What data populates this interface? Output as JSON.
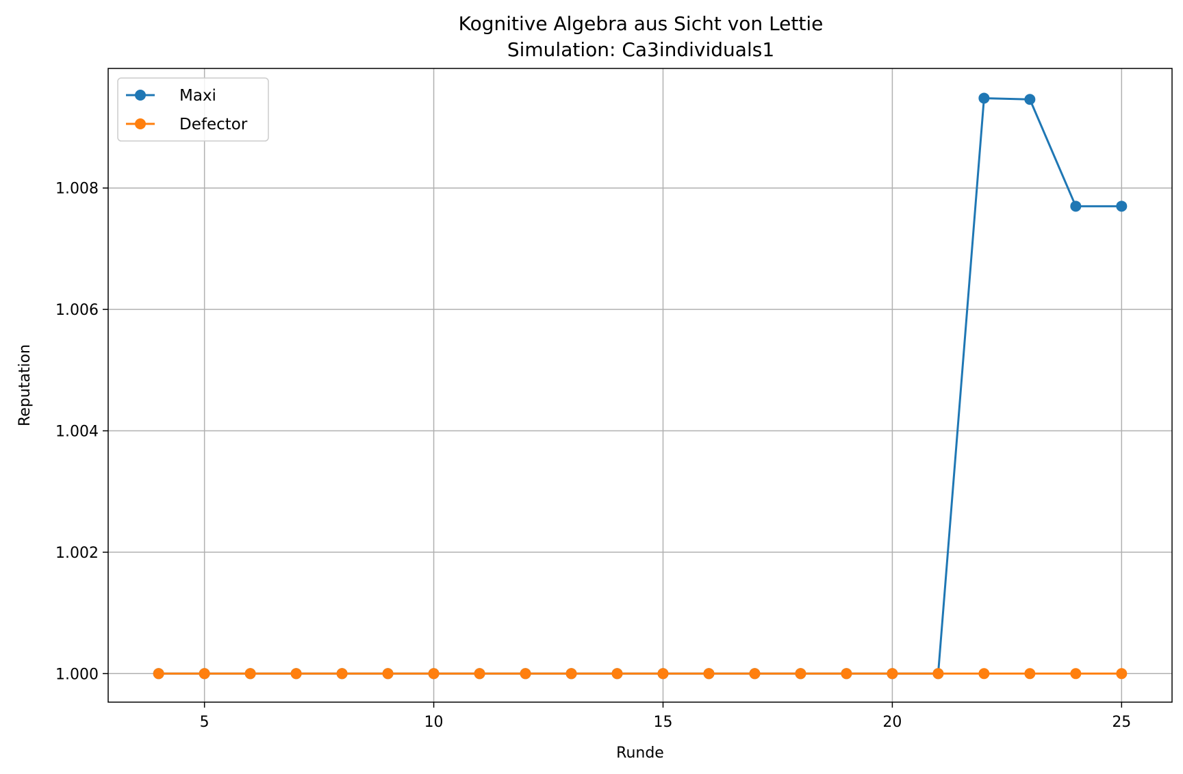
{
  "chart_data": {
    "type": "line",
    "title": "Kognitive Algebra aus Sicht von Lettie",
    "subtitle": "Simulation: Ca3individuals1",
    "xlabel": "Runde",
    "ylabel": "Reputation",
    "xlim": [
      2.9,
      26.1
    ],
    "ylim": [
      0.99953,
      1.00997
    ],
    "xticks": [
      5,
      10,
      15,
      20,
      25
    ],
    "yticks": [
      1.0,
      1.002,
      1.004,
      1.006,
      1.008
    ],
    "ytick_labels": [
      "1.000",
      "1.002",
      "1.004",
      "1.006",
      "1.008"
    ],
    "grid": true,
    "legend_position": "top-left",
    "x": [
      4,
      5,
      6,
      7,
      8,
      9,
      10,
      11,
      12,
      13,
      14,
      15,
      16,
      17,
      18,
      19,
      20,
      21,
      22,
      23,
      24,
      25
    ],
    "series": [
      {
        "name": "Maxi",
        "color": "#1f77b4",
        "values": [
          1.0,
          1.0,
          1.0,
          1.0,
          1.0,
          1.0,
          1.0,
          1.0,
          1.0,
          1.0,
          1.0,
          1.0,
          1.0,
          1.0,
          1.0,
          1.0,
          1.0,
          1.0,
          1.00948,
          1.00946,
          1.0077,
          1.0077
        ]
      },
      {
        "name": "Defector",
        "color": "#ff7f0e",
        "values": [
          1.0,
          1.0,
          1.0,
          1.0,
          1.0,
          1.0,
          1.0,
          1.0,
          1.0,
          1.0,
          1.0,
          1.0,
          1.0,
          1.0,
          1.0,
          1.0,
          1.0,
          1.0,
          1.0,
          1.0,
          1.0,
          1.0
        ]
      }
    ]
  }
}
